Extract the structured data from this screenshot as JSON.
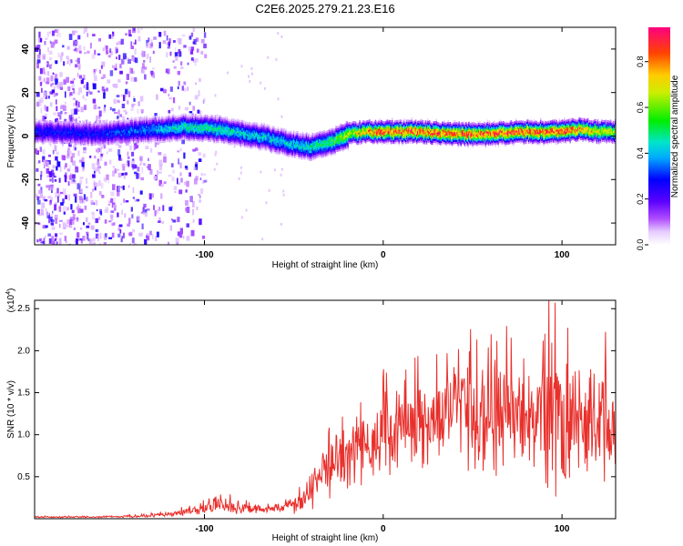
{
  "title": "C2E6.2025.279.21.23.E16",
  "colorbar": {
    "label": "Normalized spectral amplitude",
    "ticks": [
      "0.0",
      "0.2",
      "0.4",
      "0.6",
      "0.8"
    ],
    "range": [
      0,
      0.95
    ]
  },
  "chart_data": [
    {
      "type": "heatmap",
      "name": "spectrogram",
      "xlabel": "Height of straight line (km)",
      "ylabel": "Frequency (Hz)",
      "xlim": [
        -195,
        130
      ],
      "ylim": [
        -50,
        50
      ],
      "xticks": [
        -100,
        0,
        100
      ],
      "xtick_labels": [
        "-100",
        "0",
        "100"
      ],
      "yticks": [
        -40,
        -20,
        0,
        20,
        40
      ],
      "ytick_labels": [
        "-40",
        "-20",
        "0",
        "20",
        "40"
      ],
      "ridge": {
        "x": [
          -195,
          -160,
          -130,
          -110,
          -90,
          -80,
          -70,
          -60,
          -50,
          -40,
          -30,
          -20,
          -10,
          0,
          20,
          40,
          60,
          80,
          100,
          110,
          120,
          130
        ],
        "freq_hz": [
          2,
          1,
          3,
          4,
          3,
          1,
          0,
          -2,
          -4,
          -5,
          -3,
          1,
          2,
          2,
          2,
          1,
          1,
          2,
          2,
          3,
          2,
          2
        ],
        "peak_amplitude": [
          0.3,
          0.3,
          0.4,
          0.5,
          0.5,
          0.45,
          0.45,
          0.45,
          0.45,
          0.5,
          0.55,
          0.7,
          0.8,
          0.9,
          0.9,
          0.9,
          0.9,
          0.9,
          0.9,
          0.85,
          0.75,
          0.7
        ]
      },
      "noise_region_x": [
        -195,
        -110
      ]
    },
    {
      "type": "line",
      "name": "snr",
      "xlabel": "Height of straight line (km)",
      "ylabel": "SNR (10 * v/v)",
      "scale_label_base": "(x10",
      "scale_label_exp": "4",
      "scale_label_end": ")",
      "xlim": [
        -195,
        130
      ],
      "ylim": [
        0,
        2.6
      ],
      "xticks": [
        -100,
        0,
        100
      ],
      "xtick_labels": [
        "-100",
        "0",
        "100"
      ],
      "yticks": [
        0.5,
        1.0,
        1.5,
        2.0,
        2.5
      ],
      "ytick_labels": [
        "0.5",
        "1.0",
        "1.5",
        "2.0",
        "2.5"
      ],
      "color": "#e8302c",
      "envelope": {
        "x": [
          -195,
          -160,
          -140,
          -120,
          -100,
          -95,
          -85,
          -75,
          -60,
          -45,
          -38,
          -33,
          -28,
          -20,
          -10,
          0,
          10,
          20,
          40,
          60,
          80,
          90,
          95,
          100,
          110,
          120,
          130
        ],
        "mean": [
          0.02,
          0.02,
          0.03,
          0.05,
          0.12,
          0.18,
          0.15,
          0.12,
          0.12,
          0.2,
          0.45,
          0.55,
          0.7,
          0.8,
          0.9,
          0.95,
          1.05,
          1.15,
          1.25,
          1.25,
          1.2,
          1.15,
          1.3,
          1.1,
          1.0,
          1.05,
          1.1
        ],
        "amp": [
          0.01,
          0.01,
          0.02,
          0.03,
          0.08,
          0.14,
          0.1,
          0.07,
          0.06,
          0.15,
          0.35,
          0.4,
          0.45,
          0.5,
          0.55,
          0.6,
          0.6,
          0.65,
          0.75,
          0.8,
          0.85,
          0.85,
          1.3,
          0.95,
          0.85,
          0.85,
          0.9
        ]
      }
    }
  ]
}
